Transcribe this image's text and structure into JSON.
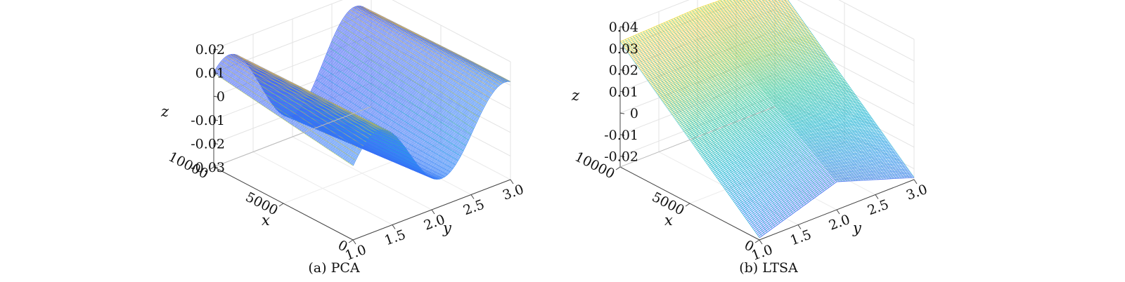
{
  "chart_data": [
    {
      "type": "surface",
      "caption": "(a) PCA",
      "xlabel": "x",
      "ylabel": "y",
      "zlabel": "z",
      "x_ticks": [
        "0",
        "5000",
        "10000"
      ],
      "x_tick_values": [
        0,
        5000,
        10000
      ],
      "y_ticks": [
        "1.0",
        "1.5",
        "2.0",
        "2.5",
        "3.0"
      ],
      "y_tick_values": [
        1.0,
        1.5,
        2.0,
        2.5,
        3.0
      ],
      "z_ticks": [
        "-0.03",
        "-0.02",
        "-0.01",
        "0",
        "0.01",
        "0.02"
      ],
      "z_tick_values": [
        -0.03,
        -0.02,
        -0.01,
        0,
        0.01,
        0.02
      ],
      "xlim": [
        0,
        10000
      ],
      "ylim": [
        1.0,
        3.0
      ],
      "zlim": [
        -0.03,
        0.02
      ],
      "surface_shape": "oscillating wave along y (about 2.5 periods), amplitude about 0.02",
      "colormap": "parula",
      "grid": true
    },
    {
      "type": "surface",
      "caption": "(b) LTSA",
      "xlabel": "x",
      "ylabel": "y",
      "zlabel": "z",
      "x_ticks": [
        "0",
        "5000",
        "10000"
      ],
      "x_tick_values": [
        0,
        5000,
        10000
      ],
      "y_ticks": [
        "1.0",
        "1.5",
        "2.0",
        "2.5",
        "3.0"
      ],
      "y_tick_values": [
        1.0,
        1.5,
        2.0,
        2.5,
        3.0
      ],
      "z_ticks": [
        "-0.02",
        "-0.01",
        "0",
        "0.01",
        "0.02",
        "0.03",
        "0.04"
      ],
      "z_tick_values": [
        -0.02,
        -0.01,
        0,
        0.01,
        0.02,
        0.03,
        0.04
      ],
      "xlim": [
        0,
        10000
      ],
      "ylim": [
        1.0,
        3.0
      ],
      "zlim": [
        -0.025,
        0.04
      ],
      "surface_shape": "folded V-shaped piecewise-linear sheet with a ridge near y = 2.0",
      "colormap": "parula",
      "grid": true
    }
  ]
}
